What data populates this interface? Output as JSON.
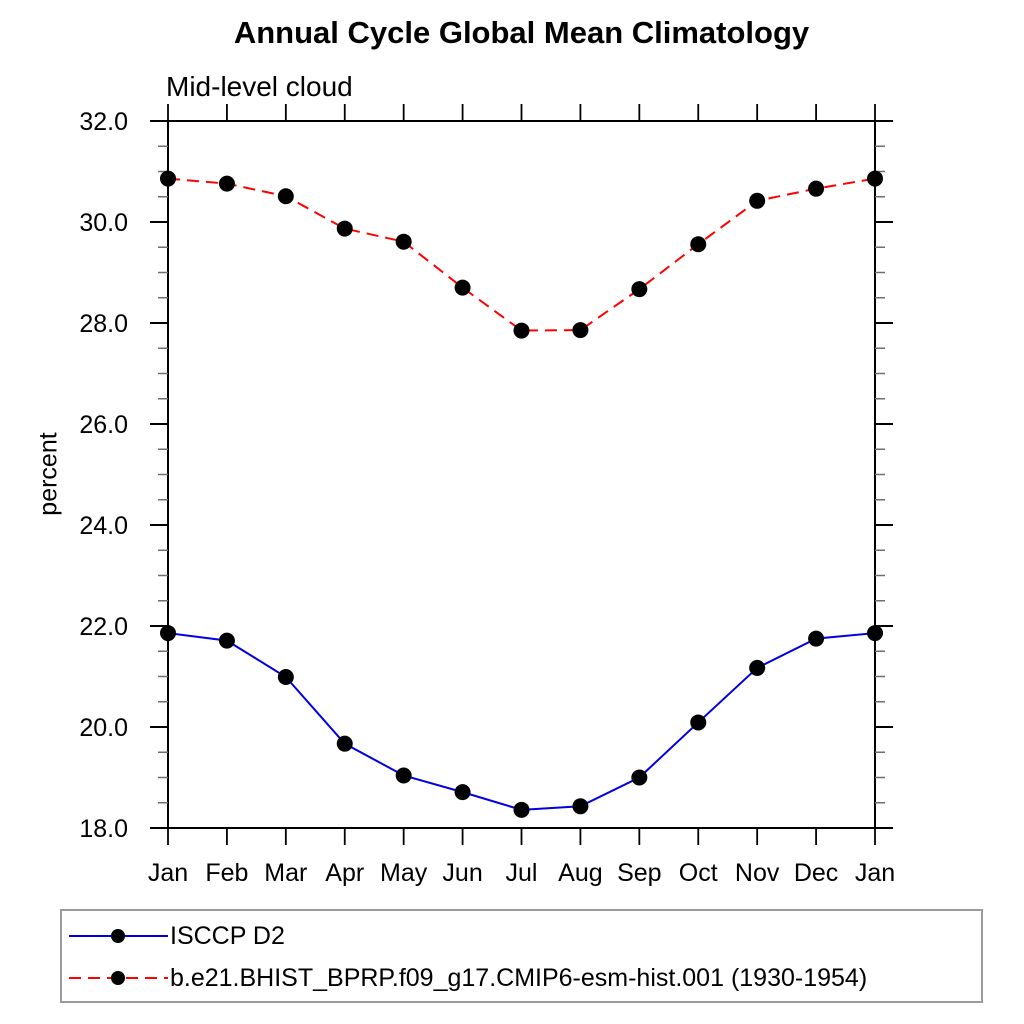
{
  "chart_data": {
    "type": "line",
    "title": "Annual Cycle Global Mean Climatology",
    "subtitle": "Mid-level cloud",
    "xlabel": "",
    "ylabel": "percent",
    "categories": [
      "Jan",
      "Feb",
      "Mar",
      "Apr",
      "May",
      "Jun",
      "Jul",
      "Aug",
      "Sep",
      "Oct",
      "Nov",
      "Dec",
      "Jan"
    ],
    "series": [
      {
        "name": "ISCCP D2",
        "line_style": "solid",
        "line_color": "#0000e6",
        "marker": "filled-circle",
        "marker_color": "#000000",
        "values": [
          21.86,
          21.71,
          20.99,
          19.67,
          19.04,
          18.71,
          18.36,
          18.43,
          19.0,
          20.09,
          21.17,
          21.75,
          21.86
        ]
      },
      {
        "name": "b.e21.BHIST_BPRP.f09_g17.CMIP6-esm-hist.001 (1930-1954)",
        "line_style": "dashed",
        "line_color": "#ff0000",
        "marker": "filled-circle",
        "marker_color": "#000000",
        "values": [
          30.86,
          30.76,
          30.51,
          29.87,
          29.61,
          28.7,
          27.85,
          27.86,
          28.67,
          29.56,
          30.42,
          30.66,
          30.86
        ]
      }
    ],
    "ylim": [
      18.0,
      32.0
    ],
    "ytick_major_interval": 2.0,
    "ytick_minor_interval": 0.5,
    "ytick_labels": [
      "18.0",
      "20.0",
      "22.0",
      "24.0",
      "26.0",
      "28.0",
      "30.0",
      "32.0"
    ],
    "grid": false,
    "legend_position": "bottom-left"
  }
}
